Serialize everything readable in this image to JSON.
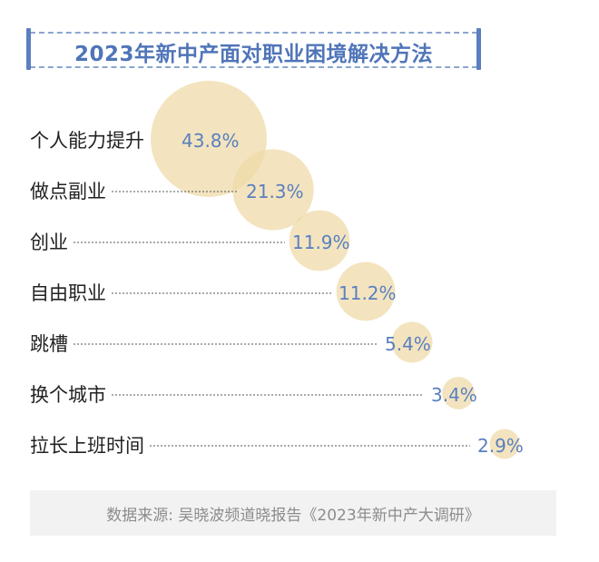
{
  "title": "2023年新中产面对职业困境解决方法",
  "source": "数据来源: 吴晓波频道晓报告《2023年新中产大调研》",
  "colors": {
    "bubble": "#efd9a6",
    "title": "#4f75b8",
    "value_text": "#5a7fc0",
    "dash_border": "#8aa6cf"
  },
  "chart_data": {
    "type": "bubble",
    "title": "2023年新中产面对职业困境解决方法",
    "categories": [
      "个人能力提升",
      "做点副业",
      "创业",
      "自由职业",
      "跳槽",
      "换个城市",
      "拉长上班时间"
    ],
    "values": [
      43.8,
      21.3,
      11.9,
      11.2,
      5.4,
      3.4,
      2.9
    ],
    "labels": [
      "43.8%",
      "21.3%",
      "11.9%",
      "11.2%",
      "5.4%",
      "3.4%",
      "2.9%"
    ],
    "unit": "%"
  }
}
